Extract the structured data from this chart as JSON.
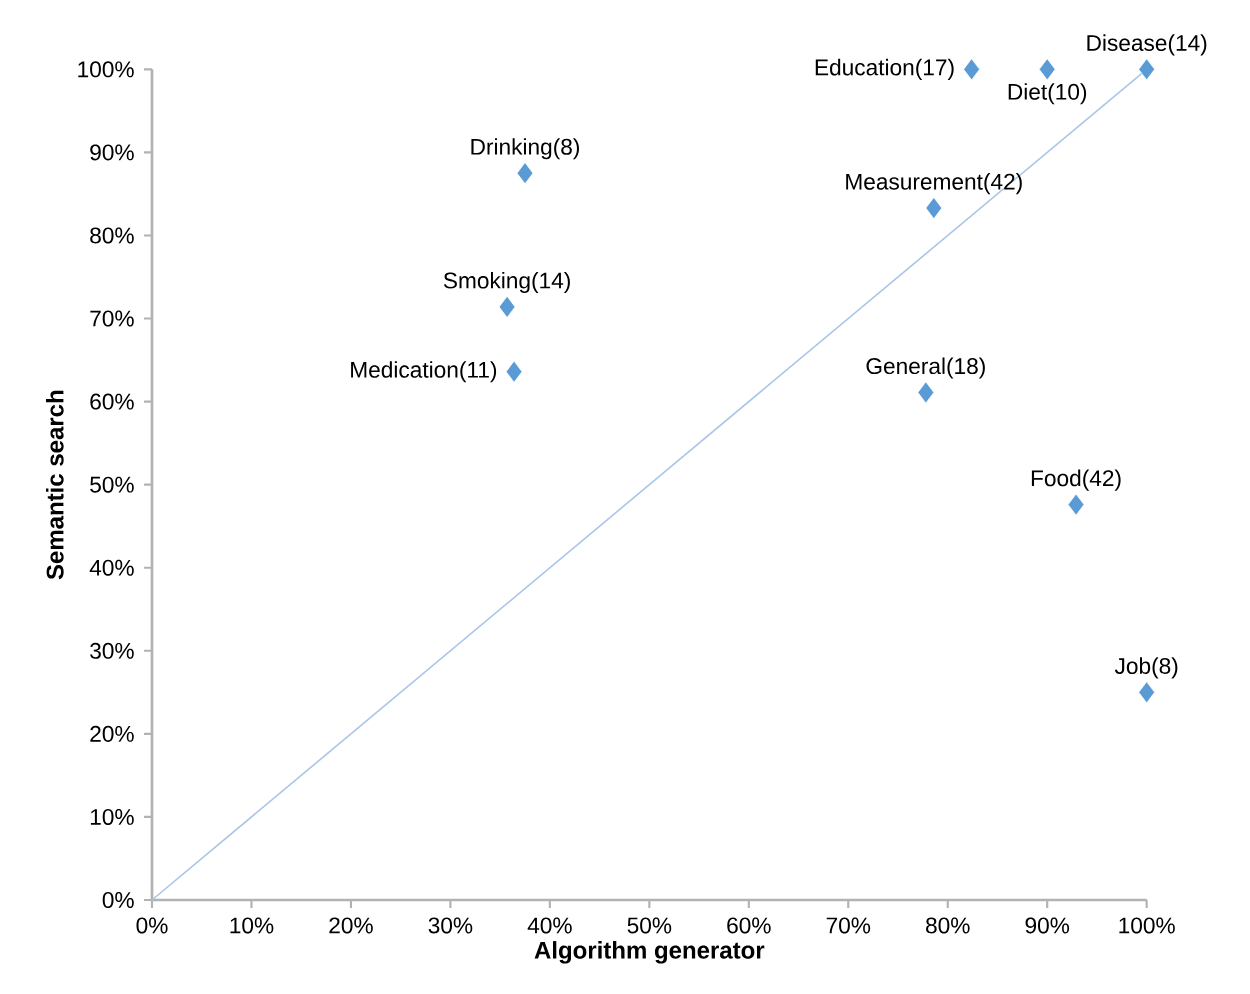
{
  "chart_data": {
    "type": "scatter",
    "xlabel": "Algorithm generator",
    "ylabel": "Semantic search",
    "xlim": [
      0,
      100
    ],
    "ylim": [
      0,
      100
    ],
    "xticks": [
      {
        "value": 0,
        "label": "0%"
      },
      {
        "value": 10,
        "label": "10%"
      },
      {
        "value": 20,
        "label": "20%"
      },
      {
        "value": 30,
        "label": "30%"
      },
      {
        "value": 40,
        "label": "40%"
      },
      {
        "value": 50,
        "label": "50%"
      },
      {
        "value": 60,
        "label": "60%"
      },
      {
        "value": 70,
        "label": "70%"
      },
      {
        "value": 80,
        "label": "80%"
      },
      {
        "value": 90,
        "label": "90%"
      },
      {
        "value": 100,
        "label": "100%"
      }
    ],
    "yticks": [
      {
        "value": 0,
        "label": "0%"
      },
      {
        "value": 10,
        "label": "10%"
      },
      {
        "value": 20,
        "label": "20%"
      },
      {
        "value": 30,
        "label": "30%"
      },
      {
        "value": 40,
        "label": "40%"
      },
      {
        "value": 50,
        "label": "50%"
      },
      {
        "value": 60,
        "label": "60%"
      },
      {
        "value": 70,
        "label": "70%"
      },
      {
        "value": 80,
        "label": "80%"
      },
      {
        "value": 90,
        "label": "90%"
      },
      {
        "value": 100,
        "label": "100%"
      }
    ],
    "marker": "diamond",
    "series": [
      {
        "color": "#5b9bd5",
        "x": [
          37.5,
          35.7,
          36.4,
          82.4,
          90,
          100,
          78.6,
          77.8,
          92.9,
          100
        ],
        "values": [
          87.5,
          71.4,
          63.6,
          100,
          100,
          100,
          83.3,
          61.1,
          47.6,
          25
        ]
      },
      {
        "type": "line",
        "color": "#a9c5e8",
        "marker": "none",
        "x": [
          0,
          100
        ],
        "values": [
          0,
          100
        ]
      }
    ],
    "annotations": [
      {
        "text": "Drinking(8)",
        "x": 37.5,
        "y": 87.5
      },
      {
        "text": "Smoking(14)",
        "x": 35.7,
        "y": 71.4
      },
      {
        "text": "Medication(11)",
        "x": 36.4,
        "y": 63.6
      },
      {
        "text": "Education(17)",
        "x": 82.4,
        "y": 100
      },
      {
        "text": "Diet(10)",
        "x": 90,
        "y": 100
      },
      {
        "text": "Disease(14)",
        "x": 100,
        "y": 100
      },
      {
        "text": "Measurement(42)",
        "x": 78.6,
        "y": 83.3
      },
      {
        "text": "General(18)",
        "x": 77.8,
        "y": 61.1
      },
      {
        "text": "Food(42)",
        "x": 92.9,
        "y": 47.6
      },
      {
        "text": "Job(8)",
        "x": 100,
        "y": 25
      }
    ]
  }
}
